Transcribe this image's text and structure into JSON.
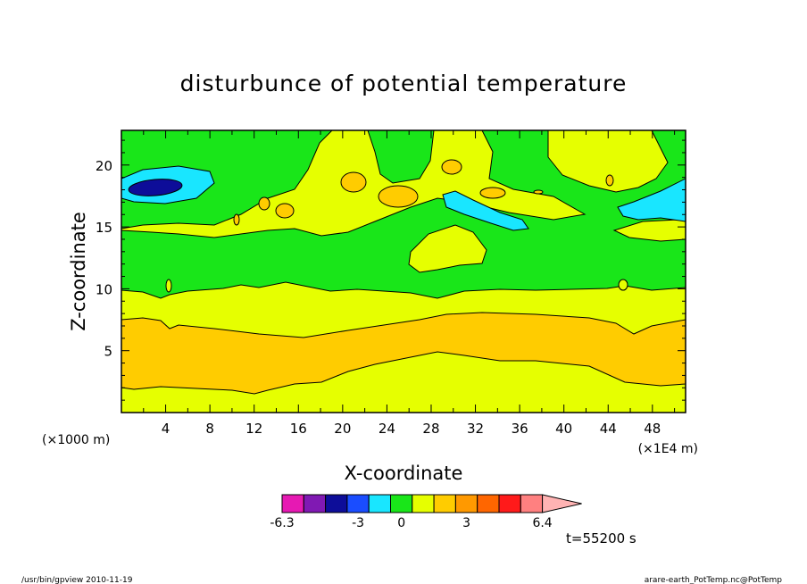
{
  "chart_data": {
    "type": "heatmap",
    "title": "disturbunce of potential temperature",
    "xlabel": "X-coordinate",
    "ylabel": "Z-coordinate",
    "x_unit_note": "(×1E4 m)",
    "y_unit_note": "(×1000 m)",
    "xlim": [
      0,
      51
    ],
    "ylim": [
      0,
      22.8
    ],
    "xticks": [
      4,
      8,
      12,
      16,
      20,
      24,
      28,
      32,
      36,
      40,
      44,
      48
    ],
    "yticks": [
      5,
      10,
      15,
      20
    ],
    "colorbar": {
      "colors": [
        "#e619b3",
        "#8019b3",
        "#0d0d99",
        "#1a4dff",
        "#19e6ff",
        "#19e619",
        "#e6ff00",
        "#ffcc00",
        "#ff9900",
        "#ff6600",
        "#ff1a1a",
        "#ff8080",
        "#ffb3b3"
      ],
      "tick_labels": [
        "-6.3",
        "-3",
        "0",
        "3",
        "6.4"
      ]
    },
    "time_label": "t=55200 s",
    "footer_left": "/usr/bin/gpview   2010-11-19",
    "footer_right": "arare-earth_PotTemp.nc@PotTemp"
  }
}
